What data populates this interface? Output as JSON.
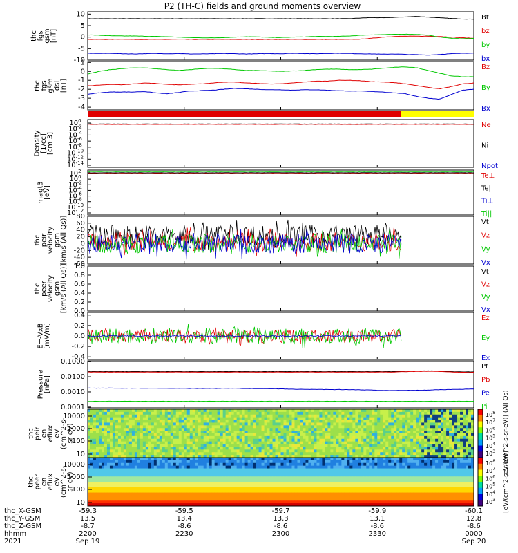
{
  "title": "P2 (TH-C) fields and ground moments overview",
  "colors": {
    "black": "#000000",
    "red": "#e00000",
    "green": "#00c800",
    "blue": "#0000d0",
    "yellow": "#ffff00",
    "spec_dark": "#b00000"
  },
  "chart_data": [
    {
      "type": "line",
      "id": "fgs",
      "ylabel_lines": [
        "thc",
        "fgs",
        "gsm",
        "[nT]"
      ],
      "ylim": [
        -10,
        11
      ],
      "yticks": [
        "10",
        "5",
        "0",
        "-5",
        "-10"
      ],
      "series": [
        {
          "name": "Bt",
          "color": "black",
          "values": [
            8,
            8,
            8,
            8,
            8,
            8,
            8,
            8,
            8,
            8,
            8,
            8,
            8,
            8,
            8,
            8,
            8,
            8,
            8,
            8,
            8,
            8,
            8,
            8,
            8.3,
            8.5,
            8.4,
            8.6,
            8.8,
            9,
            8.7,
            8.4,
            8.1,
            7.9,
            7.8
          ]
        },
        {
          "name": "bz",
          "color": "red",
          "values": [
            -1,
            -1,
            -1,
            -0.9,
            -1,
            -1,
            -1,
            -1,
            -0.9,
            -1,
            -1,
            -1,
            -1,
            -1,
            -1,
            -1,
            -1,
            -1,
            -1,
            -1,
            -1,
            -1,
            -1,
            -1,
            -0.9,
            -0.5,
            0,
            0.3,
            0.4,
            0.4,
            0.4,
            0.3,
            0,
            -0.3,
            -0.5
          ]
        },
        {
          "name": "by",
          "color": "green",
          "values": [
            1,
            0.8,
            0.6,
            0.5,
            0.5,
            0.4,
            0.3,
            0.2,
            0,
            -0.2,
            -0.3,
            -0.3,
            -0.2,
            0,
            0.2,
            0.1,
            -0.1,
            -0.2,
            0,
            0.1,
            0.3,
            0.3,
            0.3,
            0.5,
            0.8,
            1,
            1.1,
            1.2,
            1.3,
            1.2,
            0.8,
            0,
            -0.5,
            -0.7,
            -0.6
          ]
        },
        {
          "name": "bx",
          "color": "blue",
          "values": [
            -7,
            -7.1,
            -7,
            -7.2,
            -7.3,
            -7.2,
            -7.1,
            -7.2,
            -7.1,
            -7.3,
            -7.3,
            -7.2,
            -7.1,
            -7.2,
            -7.3,
            -7.2,
            -7.1,
            -7.2,
            -7,
            -7.1,
            -7.2,
            -7.1,
            -7,
            -7.1,
            -7.2,
            -7.3,
            -7.4,
            -7.3,
            -7.5,
            -7.6,
            -7.8,
            -7.5,
            -7.2,
            -7,
            -6.9
          ]
        }
      ]
    },
    {
      "type": "line",
      "id": "fgsdsl",
      "ylabel_lines": [
        "thc",
        "fgs",
        "gsm",
        "dsl",
        "[nT]"
      ],
      "ylim": [
        -4.3,
        1.1
      ],
      "yticks": [
        "1",
        "0",
        "-1",
        "-2",
        "-3",
        "-4"
      ],
      "series": [
        {
          "name": "Bz",
          "color": "red",
          "values": [
            -1.6,
            -1.55,
            -1.45,
            -1.5,
            -1.4,
            -1.3,
            -1.35,
            -1.45,
            -1.5,
            -1.45,
            -1.4,
            -1.3,
            -1.2,
            -1.2,
            -1.3,
            -1.35,
            -1.4,
            -1.4,
            -1.3,
            -1.2,
            -1.1,
            -1.1,
            -1,
            -1,
            -1.05,
            -1.15,
            -1.2,
            -1.25,
            -1.4,
            -1.6,
            -1.8,
            -1.95,
            -1.7,
            -1.4,
            -1.3
          ]
        },
        {
          "name": "By",
          "color": "green",
          "values": [
            -0.3,
            0,
            0.2,
            0.3,
            0.4,
            0.4,
            0.3,
            0.2,
            0.1,
            0.2,
            0.3,
            0.35,
            0.3,
            0.2,
            0.1,
            0.1,
            0.05,
            0,
            0.05,
            0.1,
            0.2,
            0.25,
            0.25,
            0.2,
            0.2,
            0.25,
            0.35,
            0.45,
            0.5,
            0.4,
            0.1,
            -0.2,
            -0.5,
            -0.6,
            -0.6
          ]
        },
        {
          "name": "Bx",
          "color": "blue",
          "values": [
            -2.55,
            -2.4,
            -2.3,
            -2.3,
            -2.3,
            -2.25,
            -2.4,
            -2.5,
            -2.35,
            -2.2,
            -2.15,
            -2.1,
            -2.0,
            -1.9,
            -1.95,
            -2.0,
            -2.05,
            -2.05,
            -2.1,
            -2.05,
            -2.05,
            -2.1,
            -2.15,
            -2.2,
            -2.2,
            -2.25,
            -2.3,
            -2.4,
            -2.5,
            -2.8,
            -3.0,
            -3.1,
            -2.6,
            -2.1,
            -2.0
          ]
        }
      ]
    },
    {
      "type": "area",
      "id": "mode_bar",
      "segments": [
        {
          "color": "red",
          "x_start": 0,
          "x_end": 0.812
        },
        {
          "color": "yellow",
          "x_start": 0.812,
          "x_end": 1
        }
      ]
    },
    {
      "type": "line",
      "id": "density",
      "ylabel_lines": [
        "Density",
        "[1/cc]",
        "[cm-3]"
      ],
      "ylim": [
        -14,
        1
      ],
      "log_scale": true,
      "ytick_exponents": [
        "0",
        "-2",
        "-4",
        "-6",
        "-8",
        "-10",
        "-12",
        "-14"
      ],
      "series": [
        {
          "name": "Ne",
          "color": "red",
          "values": [
            -0.5,
            -0.5,
            -0.5,
            -0.5,
            -0.5,
            -0.5,
            -0.5,
            -0.5,
            -0.5,
            -0.5,
            -0.5,
            -0.5,
            -0.5,
            -0.5,
            -0.5,
            -0.5,
            -0.5,
            -0.5,
            -0.5,
            -0.5,
            -0.5,
            -0.5,
            -0.5,
            -0.5,
            -0.5,
            -0.5,
            -0.5,
            -0.5,
            -0.5,
            -0.5,
            -0.5,
            -0.5,
            -0.5,
            -0.5,
            -0.5
          ]
        },
        {
          "name": "Ni",
          "color": "black",
          "values": [
            -0.4,
            -0.4,
            -0.4,
            -0.4,
            -0.4,
            -0.4,
            -0.4,
            -0.4,
            -0.4,
            -0.4,
            -0.4,
            -0.4,
            -0.4,
            -0.4,
            -0.4,
            -0.4,
            -0.4,
            -0.4,
            -0.4,
            -0.4,
            -0.4,
            -0.4,
            -0.4,
            -0.4,
            -0.4,
            -0.4,
            -0.4,
            -0.4,
            -0.4,
            -0.4,
            -0.4,
            -0.4,
            -0.4,
            -0.4,
            -0.4
          ]
        },
        {
          "name": "Npot",
          "color": "blue",
          "values": []
        }
      ]
    },
    {
      "type": "line",
      "id": "temperature",
      "ylabel_lines": [
        "magt3",
        "[eV]"
      ],
      "ylim": [
        -12,
        3
      ],
      "log_scale": true,
      "ytick_exponents": [
        "2",
        "0",
        "-2",
        "-4",
        "-6",
        "-8",
        "-10",
        "-12"
      ],
      "series": [
        {
          "name": "Te⊥",
          "color": "red",
          "values": [
            2,
            2,
            2,
            2,
            2,
            2,
            2,
            2,
            2,
            2,
            2,
            2,
            2,
            2,
            2,
            2,
            2,
            2,
            2,
            2,
            2,
            2,
            2,
            2,
            2,
            2,
            2,
            2,
            2,
            2,
            2,
            2,
            2,
            2,
            2
          ]
        },
        {
          "name": "Te||",
          "color": "black",
          "values": [
            2.1,
            2.1,
            2.1,
            2.1,
            2.1,
            2.1,
            2.1,
            2.1,
            2.1,
            2.1,
            2.1,
            2.1,
            2.1,
            2.1,
            2.1,
            2.1,
            2.1,
            2.1,
            2.1,
            2.1,
            2.1,
            2.1,
            2.1,
            2.1,
            2.1,
            2.1,
            2.1,
            2.1,
            2.1,
            2.1,
            2.1,
            2.1,
            2.1,
            2.1,
            2.1
          ]
        },
        {
          "name": "Ti⊥",
          "color": "blue",
          "values": [
            2.6,
            2.6,
            2.6,
            2.6,
            2.6,
            2.6,
            2.6,
            2.6,
            2.6,
            2.6,
            2.6,
            2.6,
            2.6,
            2.6,
            2.6,
            2.6,
            2.6,
            2.6,
            2.6,
            2.6,
            2.6,
            2.6,
            2.6,
            2.6,
            2.6,
            2.6,
            2.6,
            2.6,
            2.6,
            2.6,
            2.6,
            2.6,
            2.6,
            2.6,
            2.6
          ]
        },
        {
          "name": "Ti||",
          "color": "green",
          "values": [
            2.5,
            2.5,
            2.5,
            2.5,
            2.5,
            2.5,
            2.5,
            2.5,
            2.5,
            2.5,
            2.5,
            2.5,
            2.5,
            2.5,
            2.5,
            2.5,
            2.5,
            2.5,
            2.5,
            2.5,
            2.5,
            2.5,
            2.5,
            2.5,
            2.5,
            2.5,
            2.5,
            2.5,
            2.5,
            2.5,
            2.5,
            2.5,
            2.5,
            2.5,
            2.5
          ]
        }
      ]
    },
    {
      "type": "line",
      "id": "peir_velocity",
      "ylabel_lines": [
        "thc",
        "peir",
        "velocity",
        "gsm",
        "[km/s (All Qs)]"
      ],
      "ylim": [
        -60,
        80
      ],
      "yticks": [
        "80",
        "60",
        "40",
        "20",
        "0",
        "-20",
        "-40",
        "-60"
      ],
      "noisy": true,
      "x_end": 0.812,
      "series": [
        {
          "name": "Vt",
          "color": "black",
          "center": 25,
          "amp": 30
        },
        {
          "name": "Vz",
          "color": "red",
          "center": 5,
          "amp": 28
        },
        {
          "name": "Vy",
          "color": "green",
          "center": 0,
          "amp": 28
        },
        {
          "name": "Vx",
          "color": "blue",
          "center": 0,
          "amp": 30
        }
      ]
    },
    {
      "type": "line",
      "id": "peer_velocity",
      "ylabel_lines": [
        "thc",
        "peer",
        "velocity",
        "gsm",
        "[km/s (All Qs)]"
      ],
      "ylim": [
        0,
        1
      ],
      "yticks": [
        "1.0",
        "0.8",
        "0.6",
        "0.4",
        "0.2",
        "0.0"
      ],
      "series": [
        {
          "name": "Vt",
          "color": "black"
        },
        {
          "name": "Vz",
          "color": "red"
        },
        {
          "name": "Vy",
          "color": "green"
        },
        {
          "name": "Vx",
          "color": "blue"
        }
      ]
    },
    {
      "type": "line",
      "id": "efield",
      "ylabel_lines": [
        "E=-VxB",
        "[mV/m]"
      ],
      "ylim": [
        -0.45,
        0.45
      ],
      "yticks": [
        "0.4",
        "0.2",
        "0.0",
        "-0.2",
        "-0.4"
      ],
      "noisy": true,
      "x_end": 0.812,
      "series": [
        {
          "name": "Ez",
          "color": "red",
          "center": 0,
          "amp": 0.13
        },
        {
          "name": "Ey",
          "color": "green",
          "center": 0,
          "amp": 0.15
        },
        {
          "name": "Ex",
          "color": "blue",
          "center": 0,
          "amp": 0.01
        }
      ]
    },
    {
      "type": "line",
      "id": "pressure",
      "ylabel_lines": [
        "Pressure",
        "[nPa]"
      ],
      "ylim": [
        -4.05,
        -0.95
      ],
      "log_scale": true,
      "yticks": [
        "0.1000",
        "0.0100",
        "0.0010",
        "0.0001"
      ],
      "series": [
        {
          "name": "Pt",
          "color": "black",
          "values": [
            -1.66,
            -1.66,
            -1.66,
            -1.66,
            -1.66,
            -1.66,
            -1.66,
            -1.66,
            -1.66,
            -1.66,
            -1.66,
            -1.66,
            -1.66,
            -1.66,
            -1.66,
            -1.66,
            -1.66,
            -1.66,
            -1.66,
            -1.66,
            -1.66,
            -1.66,
            -1.66,
            -1.66,
            -1.66,
            -1.66,
            -1.66,
            -1.66,
            -1.63,
            -1.62,
            -1.61,
            -1.62,
            -1.66,
            -1.68,
            -1.68
          ]
        },
        {
          "name": "Pb",
          "color": "red",
          "values": [
            -1.69,
            -1.69,
            -1.69,
            -1.69,
            -1.69,
            -1.69,
            -1.69,
            -1.69,
            -1.69,
            -1.69,
            -1.69,
            -1.69,
            -1.69,
            -1.69,
            -1.69,
            -1.69,
            -1.69,
            -1.69,
            -1.69,
            -1.69,
            -1.69,
            -1.69,
            -1.69,
            -1.69,
            -1.69,
            -1.69,
            -1.69,
            -1.69,
            -1.66,
            -1.65,
            -1.64,
            -1.65,
            -1.69,
            -1.71,
            -1.71
          ]
        },
        {
          "name": "Pe",
          "color": "blue",
          "values": [
            -2.75,
            -2.75,
            -2.75,
            -2.76,
            -2.76,
            -2.76,
            -2.76,
            -2.76,
            -2.76,
            -2.77,
            -2.77,
            -2.77,
            -2.76,
            -2.76,
            -2.78,
            -2.78,
            -2.79,
            -2.8,
            -2.82,
            -2.83,
            -2.83,
            -2.84,
            -2.84,
            -2.85,
            -2.86,
            -2.88,
            -2.9,
            -2.9,
            -2.9,
            -2.89,
            -2.88,
            -2.85,
            -2.84,
            -2.82,
            -2.8
          ]
        },
        {
          "name": "Pi",
          "color": "green",
          "values": [
            -3.62,
            -3.62,
            -3.62,
            -3.62,
            -3.62,
            -3.62,
            -3.62,
            -3.62,
            -3.62,
            -3.62,
            -3.62,
            -3.62,
            -3.62,
            -3.62,
            -3.62,
            -3.62,
            -3.62,
            -3.62,
            -3.62,
            -3.62,
            -3.62,
            -3.62,
            -3.62,
            -3.62,
            -3.62,
            -3.62,
            -3.62,
            -3.62,
            -3.62,
            -3.62,
            -3.62,
            -3.62,
            -3.62,
            -3.62,
            -3.62
          ]
        }
      ]
    },
    {
      "type": "heatmap",
      "id": "peir_en_eflux",
      "ylabel_lines": [
        "thc",
        "peir",
        "en",
        "eflux",
        "eV",
        "(cm^2-s-",
        "sr-eV)"
      ],
      "yticks": [
        "10000",
        "1000",
        "100",
        "10"
      ],
      "zlabel": "[eV/(cm^2-s-sr-eV)] (All Qs)",
      "ztick_exponents": [
        "8",
        "7",
        "6",
        "5",
        "4",
        "3"
      ]
    },
    {
      "type": "heatmap",
      "id": "peer_en_eflux",
      "ylabel_lines": [
        "thc",
        "peer",
        "en",
        "eflux",
        "eV",
        "(cm^2-s-",
        "sr-eV)"
      ],
      "yticks": [
        "10000",
        "1000",
        "100",
        "10"
      ],
      "zlabel": "[eV/(cm^2-s-sr-eV)]",
      "ztick_exponents": [
        "8",
        "7",
        "6",
        "5",
        "4",
        "3"
      ]
    }
  ],
  "footer": {
    "rows": [
      {
        "label": "thc_X-GSM",
        "values": [
          "-59.3",
          "-59.5",
          "-59.7",
          "-59.9",
          "-60.1"
        ]
      },
      {
        "label": "thc_Y-GSM",
        "values": [
          "13.5",
          "13.4",
          "13.3",
          "13.1",
          "12.8"
        ]
      },
      {
        "label": "thc_Z-GSM",
        "values": [
          "-8.7",
          "-8.6",
          "-8.6",
          "-8.6",
          "-8.6"
        ]
      },
      {
        "label": "hhmm",
        "values": [
          "2200",
          "2230",
          "2300",
          "2330",
          "0000"
        ]
      }
    ],
    "year": "2021",
    "date_start": "Sep 19",
    "date_end": "Sep 20"
  }
}
